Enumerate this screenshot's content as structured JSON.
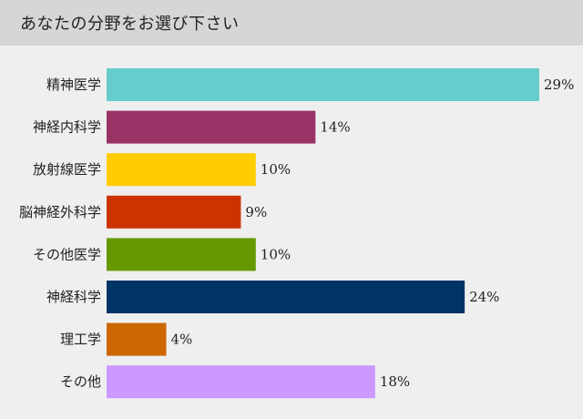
{
  "header": {
    "title": "あなたの分野をお選び下さい"
  },
  "chart_data": {
    "type": "bar",
    "orientation": "horizontal",
    "categories": [
      "精神医学",
      "神経内科学",
      "放射線医学",
      "脳神経外科学",
      "その他医学",
      "神経科学",
      "理工学",
      "その他"
    ],
    "values": [
      29,
      14,
      10,
      9,
      10,
      24,
      4,
      18
    ],
    "value_labels": [
      "29%",
      "14%",
      "10%",
      "9%",
      "10%",
      "24%",
      "4%",
      "18%"
    ],
    "unit": "%",
    "colors": [
      "#66cccc",
      "#993366",
      "#ffcc00",
      "#cc3300",
      "#669900",
      "#003366",
      "#cc6600",
      "#cc99ff"
    ],
    "xlim": [
      0,
      29
    ],
    "grid": false,
    "legend": "none"
  }
}
